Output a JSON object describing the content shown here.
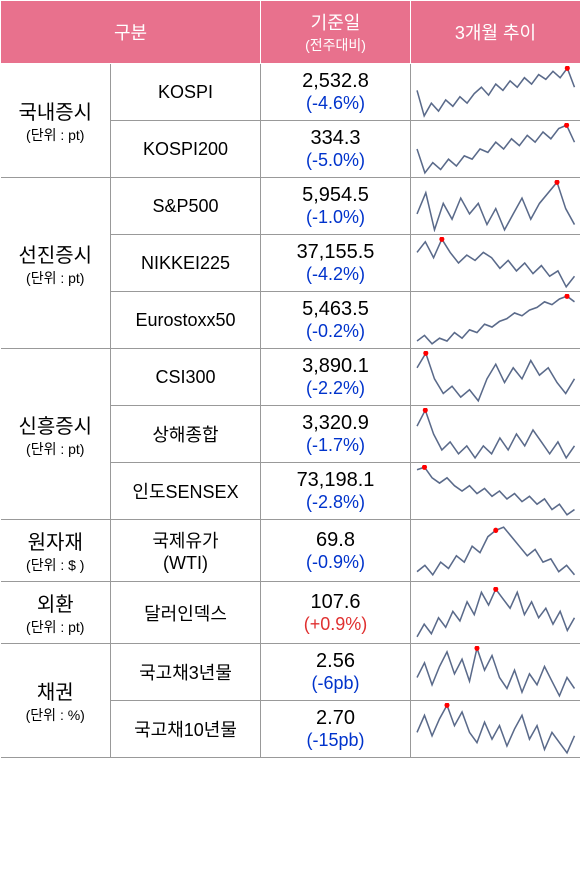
{
  "header": {
    "col1": "구분",
    "col2_main": "기준일",
    "col2_sub": "(전주대비)",
    "col3": "3개월 추이"
  },
  "spark_style": {
    "stroke": "#5a6a8a",
    "stroke_width": 1.5,
    "dot_fill": "#ff0000",
    "dot_radius": 2.5,
    "bg": "#ffffff"
  },
  "categories": [
    {
      "name": "국내증시",
      "unit": "(단위 : pt)",
      "rows": [
        {
          "label": "KOSPI",
          "value": "2,532.8",
          "change": "(-4.6%)",
          "change_class": "neg",
          "spark": [
            22,
            38,
            30,
            35,
            28,
            32,
            26,
            30,
            24,
            20,
            25,
            18,
            22,
            16,
            20,
            14,
            18,
            12,
            15,
            10,
            14,
            8,
            20
          ],
          "dot_index": 21
        },
        {
          "label": "KOSPI200",
          "value": "334.3",
          "change": "(-5.0%)",
          "change_class": "neg",
          "spark": [
            22,
            36,
            30,
            34,
            28,
            32,
            26,
            28,
            22,
            24,
            18,
            22,
            16,
            20,
            14,
            18,
            12,
            16,
            10,
            8,
            18
          ],
          "dot_index": 19
        }
      ]
    },
    {
      "name": "선진증시",
      "unit": "(단위 : pt)",
      "rows": [
        {
          "label": "S&P500",
          "value": "5,954.5",
          "change": "(-1.0%)",
          "change_class": "neg",
          "spark": [
            18,
            10,
            24,
            14,
            20,
            12,
            18,
            14,
            22,
            16,
            24,
            18,
            12,
            20,
            14,
            10,
            6,
            16,
            22
          ],
          "dot_index": 16
        },
        {
          "label": "NIKKEI225",
          "value": "37,155.5",
          "change": "(-4.2%)",
          "change_class": "neg",
          "spark": [
            16,
            8,
            20,
            6,
            16,
            24,
            18,
            22,
            16,
            20,
            28,
            22,
            30,
            24,
            32,
            26,
            34,
            30,
            42,
            34
          ],
          "dot_index": 3
        },
        {
          "label": "Eurostoxx50",
          "value": "5,463.5",
          "change": "(-0.2%)",
          "change_class": "neg",
          "spark": [
            38,
            34,
            40,
            36,
            38,
            32,
            36,
            30,
            32,
            26,
            28,
            24,
            22,
            18,
            20,
            16,
            14,
            10,
            12,
            8,
            6,
            10
          ],
          "dot_index": 20
        }
      ]
    },
    {
      "name": "신흥증시",
      "unit": "(단위 : pt)",
      "rows": [
        {
          "label": "CSI300",
          "value": "3,890.1",
          "change": "(-2.2%)",
          "change_class": "neg",
          "spark": [
            16,
            8,
            22,
            30,
            26,
            32,
            28,
            34,
            22,
            14,
            24,
            16,
            22,
            12,
            20,
            16,
            24,
            30,
            22
          ],
          "dot_index": 1
        },
        {
          "label": "상해종합",
          "value": "3,320.9",
          "change": "(-1.7%)",
          "change_class": "neg",
          "spark": [
            16,
            8,
            20,
            28,
            24,
            30,
            26,
            32,
            26,
            30,
            22,
            28,
            20,
            26,
            18,
            24,
            30,
            24,
            32,
            26
          ],
          "dot_index": 1
        },
        {
          "label": "인도SENSEX",
          "value": "73,198.1",
          "change": "(-2.8%)",
          "change_class": "neg",
          "spark": [
            8,
            6,
            14,
            18,
            14,
            20,
            24,
            20,
            26,
            22,
            28,
            24,
            30,
            26,
            32,
            28,
            34,
            30,
            38,
            34,
            42,
            38
          ],
          "dot_index": 1
        }
      ]
    },
    {
      "name": "원자재",
      "unit": "(단위 : $ )",
      "rows": [
        {
          "label": "국제유가\n(WTI)",
          "value": "69.8",
          "change": "(-0.9%)",
          "change_class": "neg",
          "spark": [
            34,
            30,
            36,
            28,
            32,
            24,
            28,
            18,
            22,
            12,
            8,
            6,
            12,
            18,
            24,
            20,
            28,
            26,
            34,
            30,
            36
          ],
          "dot_index": 10
        }
      ]
    },
    {
      "name": "외환",
      "unit": "(단위 : pt)",
      "rows": [
        {
          "label": "달러인덱스",
          "value": "107.6",
          "change": "(+0.9%)",
          "change_class": "pos",
          "spark": [
            38,
            30,
            36,
            26,
            32,
            22,
            28,
            16,
            24,
            10,
            18,
            8,
            14,
            20,
            10,
            24,
            16,
            26,
            20,
            30,
            22,
            34,
            26
          ],
          "dot_index": 11
        }
      ]
    },
    {
      "name": "채권",
      "unit": "(단위 : %)",
      "rows": [
        {
          "label": "국고채3년물",
          "value": "2.56",
          "change": "(-6pb)",
          "change_class": "neg",
          "spark": [
            24,
            16,
            28,
            18,
            10,
            22,
            14,
            26,
            8,
            20,
            12,
            24,
            30,
            20,
            32,
            22,
            28,
            18,
            26,
            34,
            24,
            30
          ],
          "dot_index": 8
        },
        {
          "label": "국고채10년물",
          "value": "2.70",
          "change": "(-15pb)",
          "change_class": "neg",
          "spark": [
            24,
            14,
            26,
            16,
            8,
            20,
            12,
            24,
            30,
            18,
            28,
            20,
            32,
            22,
            14,
            28,
            20,
            34,
            24,
            30,
            36,
            26
          ],
          "dot_index": 4
        }
      ]
    }
  ]
}
